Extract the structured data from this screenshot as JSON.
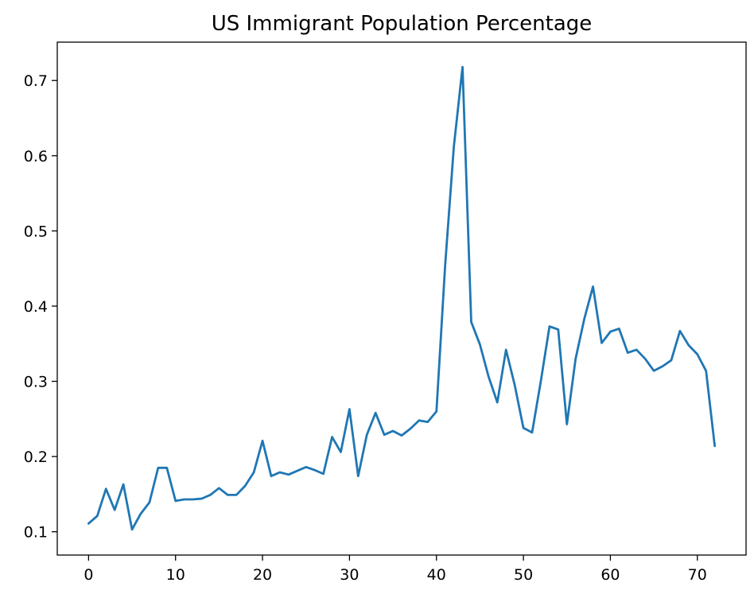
{
  "chart_data": {
    "type": "line",
    "title": "US Immigrant Population Percentage",
    "xlabel": "",
    "ylabel": "",
    "xlim": [
      -3.6,
      75.6
    ],
    "ylim": [
      0.069,
      0.751
    ],
    "xticks": [
      0,
      10,
      20,
      30,
      40,
      50,
      60,
      70
    ],
    "yticks": [
      0.1,
      0.2,
      0.3,
      0.4,
      0.5,
      0.6,
      0.7
    ],
    "grid": false,
    "legend": "none",
    "line_color": "#1f77b4",
    "series": [
      {
        "x": [
          0,
          1,
          2,
          3,
          4,
          5,
          6,
          7,
          8,
          9,
          10,
          11,
          12,
          13,
          14,
          15,
          16,
          17,
          18,
          19,
          20,
          21,
          22,
          23,
          24,
          25,
          26,
          27,
          28,
          29,
          30,
          31,
          32,
          33,
          34,
          35,
          36,
          37,
          38,
          39,
          40,
          41,
          42,
          43,
          44,
          45,
          46,
          47,
          48,
          49,
          50,
          51,
          52,
          53,
          54,
          55,
          56,
          57,
          58,
          59,
          60,
          61,
          62,
          63,
          64,
          65,
          66,
          67,
          68,
          69,
          70,
          71,
          72
        ],
        "values": [
          0.111,
          0.121,
          0.157,
          0.129,
          0.163,
          0.103,
          0.124,
          0.139,
          0.185,
          0.185,
          0.141,
          0.143,
          0.143,
          0.144,
          0.149,
          0.158,
          0.149,
          0.149,
          0.161,
          0.179,
          0.221,
          0.174,
          0.179,
          0.176,
          0.181,
          0.186,
          0.182,
          0.177,
          0.226,
          0.206,
          0.263,
          0.174,
          0.229,
          0.258,
          0.229,
          0.234,
          0.228,
          0.237,
          0.248,
          0.246,
          0.26,
          0.454,
          0.612,
          0.718,
          0.379,
          0.349,
          0.306,
          0.272,
          0.342,
          0.295,
          0.238,
          0.232,
          0.3,
          0.373,
          0.369,
          0.243,
          0.33,
          0.383,
          0.426,
          0.351,
          0.366,
          0.37,
          0.338,
          0.342,
          0.33,
          0.314,
          0.32,
          0.328,
          0.367,
          0.348,
          0.336,
          0.314,
          0.214
        ]
      }
    ]
  }
}
